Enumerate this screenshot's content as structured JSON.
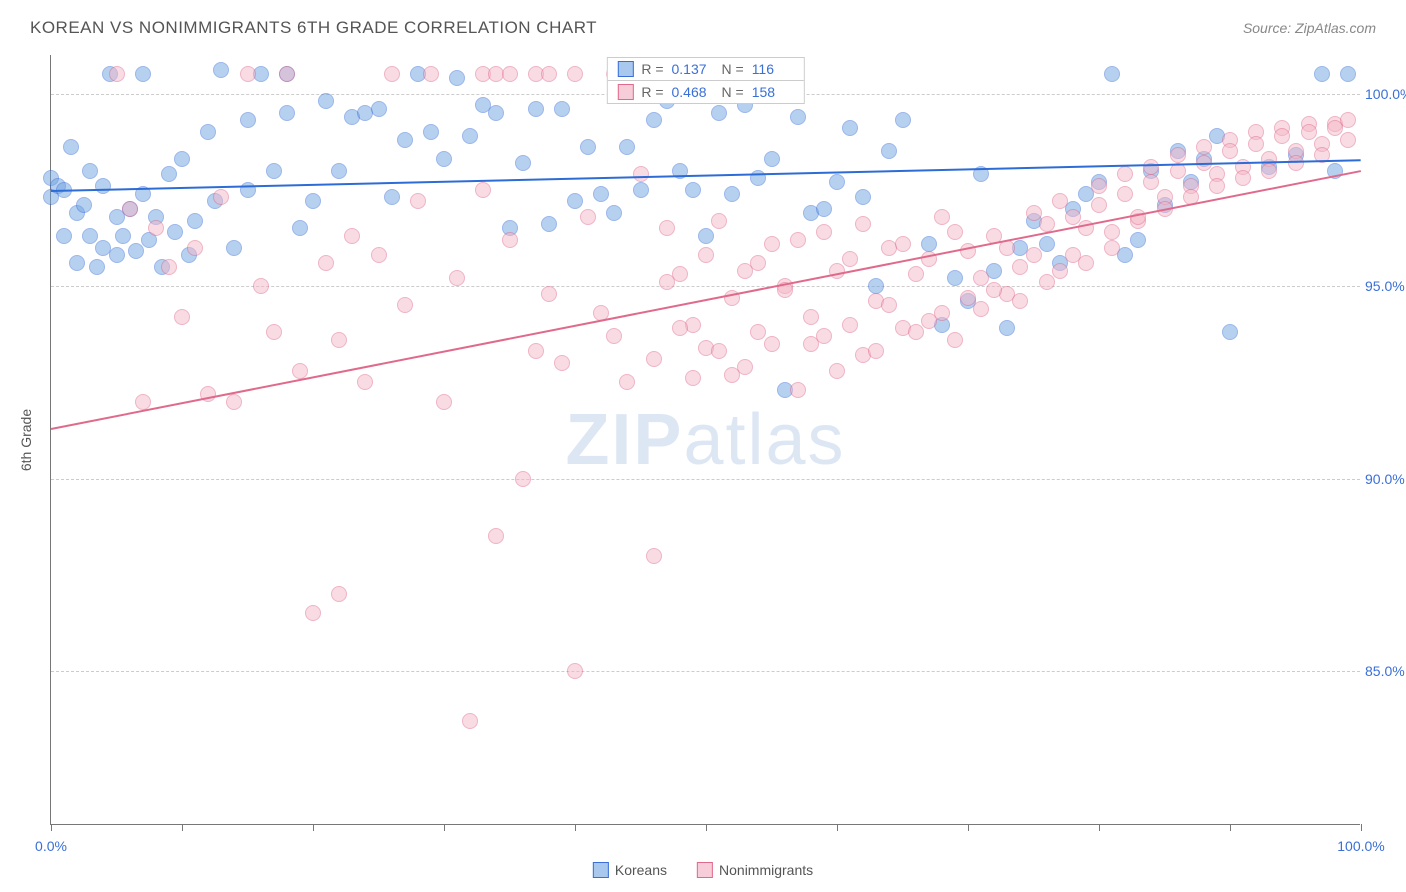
{
  "title": "KOREAN VS NONIMMIGRANTS 6TH GRADE CORRELATION CHART",
  "source": "Source: ZipAtlas.com",
  "watermark_bold": "ZIP",
  "watermark_light": "atlas",
  "yaxis_title": "6th Grade",
  "chart": {
    "type": "scatter",
    "background_color": "#ffffff",
    "grid_color": "#cccccc",
    "axis_color": "#777777",
    "tick_label_color": "#3a6fd8",
    "xlim": [
      0,
      100
    ],
    "ylim": [
      81,
      101
    ],
    "xticks": [
      0,
      10,
      20,
      30,
      40,
      50,
      60,
      70,
      80,
      90,
      100
    ],
    "xtick_labels": {
      "0": "0.0%",
      "100": "100.0%"
    },
    "yticks": [
      85,
      90,
      95,
      100
    ],
    "ytick_labels": {
      "85": "85.0%",
      "90": "90.0%",
      "95": "95.0%",
      "100": "100.0%"
    },
    "point_radius": 8,
    "point_opacity": 0.5,
    "line_width": 2
  },
  "series": [
    {
      "name": "Koreans",
      "color": "#6fa3e0",
      "border_color": "#3a6fd8",
      "r": "0.137",
      "n": "116",
      "trend": {
        "x1": 0,
        "y1": 97.5,
        "x2": 100,
        "y2": 98.3,
        "color": "#2d6cd6"
      },
      "points": [
        [
          0,
          97.8
        ],
        [
          0,
          97.3
        ],
        [
          0.5,
          97.6
        ],
        [
          1,
          97.5
        ],
        [
          1,
          96.3
        ],
        [
          1.5,
          98.6
        ],
        [
          2,
          96.9
        ],
        [
          2,
          95.6
        ],
        [
          2.5,
          97.1
        ],
        [
          3,
          98.0
        ],
        [
          3,
          96.3
        ],
        [
          3.5,
          95.5
        ],
        [
          4,
          97.6
        ],
        [
          4,
          96.0
        ],
        [
          4.5,
          100.5
        ],
        [
          5,
          96.8
        ],
        [
          5,
          95.8
        ],
        [
          5.5,
          96.3
        ],
        [
          6,
          97.0
        ],
        [
          6.5,
          95.9
        ],
        [
          7,
          100.5
        ],
        [
          7,
          97.4
        ],
        [
          7.5,
          96.2
        ],
        [
          8,
          96.8
        ],
        [
          8.5,
          95.5
        ],
        [
          9,
          97.9
        ],
        [
          9.5,
          96.4
        ],
        [
          10,
          98.3
        ],
        [
          10.5,
          95.8
        ],
        [
          11,
          96.7
        ],
        [
          12,
          99.0
        ],
        [
          12.5,
          97.2
        ],
        [
          13,
          100.6
        ],
        [
          14,
          96.0
        ],
        [
          15,
          97.5
        ],
        [
          15,
          99.3
        ],
        [
          16,
          100.5
        ],
        [
          17,
          98.0
        ],
        [
          18,
          100.5
        ],
        [
          18,
          99.5
        ],
        [
          19,
          96.5
        ],
        [
          20,
          97.2
        ],
        [
          21,
          99.8
        ],
        [
          22,
          98.0
        ],
        [
          23,
          99.4
        ],
        [
          24,
          99.5
        ],
        [
          25,
          99.6
        ],
        [
          26,
          97.3
        ],
        [
          27,
          98.8
        ],
        [
          28,
          100.5
        ],
        [
          29,
          99.0
        ],
        [
          30,
          98.3
        ],
        [
          31,
          100.4
        ],
        [
          32,
          98.9
        ],
        [
          33,
          99.7
        ],
        [
          34,
          99.5
        ],
        [
          35,
          96.5
        ],
        [
          36,
          98.2
        ],
        [
          37,
          99.6
        ],
        [
          38,
          96.6
        ],
        [
          39,
          99.6
        ],
        [
          40,
          97.2
        ],
        [
          41,
          98.6
        ],
        [
          42,
          97.4
        ],
        [
          43,
          96.9
        ],
        [
          44,
          98.6
        ],
        [
          45,
          97.5
        ],
        [
          46,
          99.3
        ],
        [
          47,
          99.8
        ],
        [
          48,
          98.0
        ],
        [
          49,
          97.5
        ],
        [
          50,
          96.3
        ],
        [
          51,
          99.5
        ],
        [
          52,
          97.4
        ],
        [
          53,
          99.7
        ],
        [
          54,
          97.8
        ],
        [
          55,
          98.3
        ],
        [
          56,
          92.3
        ],
        [
          57,
          99.4
        ],
        [
          58,
          96.9
        ],
        [
          59,
          97.0
        ],
        [
          60,
          97.7
        ],
        [
          61,
          99.1
        ],
        [
          62,
          97.3
        ],
        [
          63,
          95.0
        ],
        [
          64,
          98.5
        ],
        [
          65,
          99.3
        ],
        [
          67,
          96.1
        ],
        [
          68,
          94.0
        ],
        [
          69,
          95.2
        ],
        [
          70,
          94.6
        ],
        [
          71,
          97.9
        ],
        [
          72,
          95.4
        ],
        [
          73,
          93.9
        ],
        [
          74,
          96.0
        ],
        [
          75,
          96.7
        ],
        [
          76,
          96.1
        ],
        [
          77,
          95.6
        ],
        [
          78,
          97.0
        ],
        [
          79,
          97.4
        ],
        [
          80,
          97.7
        ],
        [
          81,
          100.5
        ],
        [
          82,
          95.8
        ],
        [
          83,
          96.2
        ],
        [
          84,
          98.0
        ],
        [
          85,
          97.1
        ],
        [
          86,
          98.5
        ],
        [
          87,
          97.7
        ],
        [
          88,
          98.3
        ],
        [
          89,
          98.9
        ],
        [
          90,
          93.8
        ],
        [
          93,
          98.1
        ],
        [
          95,
          98.4
        ],
        [
          97,
          100.5
        ],
        [
          98,
          98.0
        ],
        [
          99,
          100.5
        ]
      ]
    },
    {
      "name": "Nonimmigrants",
      "color": "#f4b8c8",
      "border_color": "#e06a8c",
      "r": "0.468",
      "n": "158",
      "trend": {
        "x1": 0,
        "y1": 91.3,
        "x2": 100,
        "y2": 98.0,
        "color": "#e06a8c"
      },
      "points": [
        [
          5,
          100.5
        ],
        [
          6,
          97.0
        ],
        [
          7,
          92.0
        ],
        [
          8,
          96.5
        ],
        [
          9,
          95.5
        ],
        [
          10,
          94.2
        ],
        [
          11,
          96.0
        ],
        [
          12,
          92.2
        ],
        [
          13,
          97.3
        ],
        [
          14,
          92.0
        ],
        [
          15,
          100.5
        ],
        [
          16,
          95.0
        ],
        [
          17,
          93.8
        ],
        [
          18,
          100.5
        ],
        [
          19,
          92.8
        ],
        [
          20,
          86.5
        ],
        [
          21,
          95.6
        ],
        [
          22,
          93.6
        ],
        [
          22,
          87.0
        ],
        [
          23,
          96.3
        ],
        [
          24,
          92.5
        ],
        [
          25,
          95.8
        ],
        [
          26,
          100.5
        ],
        [
          27,
          94.5
        ],
        [
          28,
          97.2
        ],
        [
          29,
          100.5
        ],
        [
          30,
          92.0
        ],
        [
          31,
          95.2
        ],
        [
          32,
          83.7
        ],
        [
          33,
          97.5
        ],
        [
          34,
          88.5
        ],
        [
          35,
          96.2
        ],
        [
          36,
          90.0
        ],
        [
          37,
          93.3
        ],
        [
          38,
          94.8
        ],
        [
          39,
          93.0
        ],
        [
          40,
          85.0
        ],
        [
          41,
          96.8
        ],
        [
          42,
          94.3
        ],
        [
          43,
          93.7
        ],
        [
          44,
          92.5
        ],
        [
          45,
          97.9
        ],
        [
          46,
          93.1
        ],
        [
          46,
          88.0
        ],
        [
          47,
          96.5
        ],
        [
          48,
          95.3
        ],
        [
          49,
          94.0
        ],
        [
          50,
          93.4
        ],
        [
          51,
          96.7
        ],
        [
          52,
          92.7
        ],
        [
          53,
          95.4
        ],
        [
          54,
          93.8
        ],
        [
          55,
          96.1
        ],
        [
          56,
          95.0
        ],
        [
          57,
          92.3
        ],
        [
          58,
          93.5
        ],
        [
          59,
          96.4
        ],
        [
          60,
          92.8
        ],
        [
          61,
          95.7
        ],
        [
          62,
          93.2
        ],
        [
          63,
          94.6
        ],
        [
          64,
          96.0
        ],
        [
          65,
          93.9
        ],
        [
          66,
          95.3
        ],
        [
          67,
          94.1
        ],
        [
          68,
          96.8
        ],
        [
          69,
          93.6
        ],
        [
          70,
          95.9
        ],
        [
          71,
          94.4
        ],
        [
          72,
          96.3
        ],
        [
          73,
          94.8
        ],
        [
          74,
          95.5
        ],
        [
          75,
          96.9
        ],
        [
          76,
          95.1
        ],
        [
          77,
          97.2
        ],
        [
          78,
          95.8
        ],
        [
          79,
          96.5
        ],
        [
          80,
          97.6
        ],
        [
          81,
          96.0
        ],
        [
          82,
          97.9
        ],
        [
          83,
          96.7
        ],
        [
          84,
          98.1
        ],
        [
          85,
          97.3
        ],
        [
          86,
          98.4
        ],
        [
          87,
          97.6
        ],
        [
          88,
          98.6
        ],
        [
          89,
          97.9
        ],
        [
          90,
          98.8
        ],
        [
          91,
          98.1
        ],
        [
          92,
          99.0
        ],
        [
          93,
          98.3
        ],
        [
          94,
          99.1
        ],
        [
          95,
          98.5
        ],
        [
          96,
          99.2
        ],
        [
          97,
          98.7
        ],
        [
          98,
          99.2
        ],
        [
          99,
          98.8
        ],
        [
          47,
          95.1
        ],
        [
          48,
          93.9
        ],
        [
          49,
          92.6
        ],
        [
          50,
          95.8
        ],
        [
          51,
          93.3
        ],
        [
          52,
          94.7
        ],
        [
          53,
          92.9
        ],
        [
          54,
          95.6
        ],
        [
          55,
          93.5
        ],
        [
          56,
          94.9
        ],
        [
          57,
          96.2
        ],
        [
          58,
          94.2
        ],
        [
          59,
          93.7
        ],
        [
          60,
          95.4
        ],
        [
          61,
          94.0
        ],
        [
          62,
          96.6
        ],
        [
          63,
          93.3
        ],
        [
          64,
          94.5
        ],
        [
          65,
          96.1
        ],
        [
          66,
          93.8
        ],
        [
          67,
          95.7
        ],
        [
          68,
          94.3
        ],
        [
          69,
          96.4
        ],
        [
          70,
          94.7
        ],
        [
          71,
          95.2
        ],
        [
          72,
          94.9
        ],
        [
          73,
          96.0
        ],
        [
          74,
          94.6
        ],
        [
          75,
          95.8
        ],
        [
          76,
          96.6
        ],
        [
          77,
          95.4
        ],
        [
          78,
          96.8
        ],
        [
          79,
          95.6
        ],
        [
          80,
          97.1
        ],
        [
          81,
          96.4
        ],
        [
          82,
          97.4
        ],
        [
          83,
          96.8
        ],
        [
          84,
          97.7
        ],
        [
          85,
          97.0
        ],
        [
          86,
          98.0
        ],
        [
          87,
          97.3
        ],
        [
          88,
          98.2
        ],
        [
          89,
          97.6
        ],
        [
          90,
          98.5
        ],
        [
          91,
          97.8
        ],
        [
          92,
          98.7
        ],
        [
          93,
          98.0
        ],
        [
          94,
          98.9
        ],
        [
          95,
          98.2
        ],
        [
          96,
          99.0
        ],
        [
          97,
          98.4
        ],
        [
          98,
          99.1
        ],
        [
          99,
          99.3
        ],
        [
          33,
          100.5
        ],
        [
          34,
          100.5
        ],
        [
          35,
          100.5
        ],
        [
          37,
          100.5
        ],
        [
          38,
          100.5
        ],
        [
          40,
          100.5
        ],
        [
          43,
          100.5
        ],
        [
          46,
          100.5
        ]
      ]
    }
  ],
  "stats_labels": {
    "r": "R  =",
    "n": "N  ="
  },
  "legend": [
    {
      "label": "Koreans",
      "fill": "#a8c8ed",
      "stroke": "#3a6fd8"
    },
    {
      "label": "Nonimmigrants",
      "fill": "#f7cdd9",
      "stroke": "#e06a8c"
    }
  ]
}
